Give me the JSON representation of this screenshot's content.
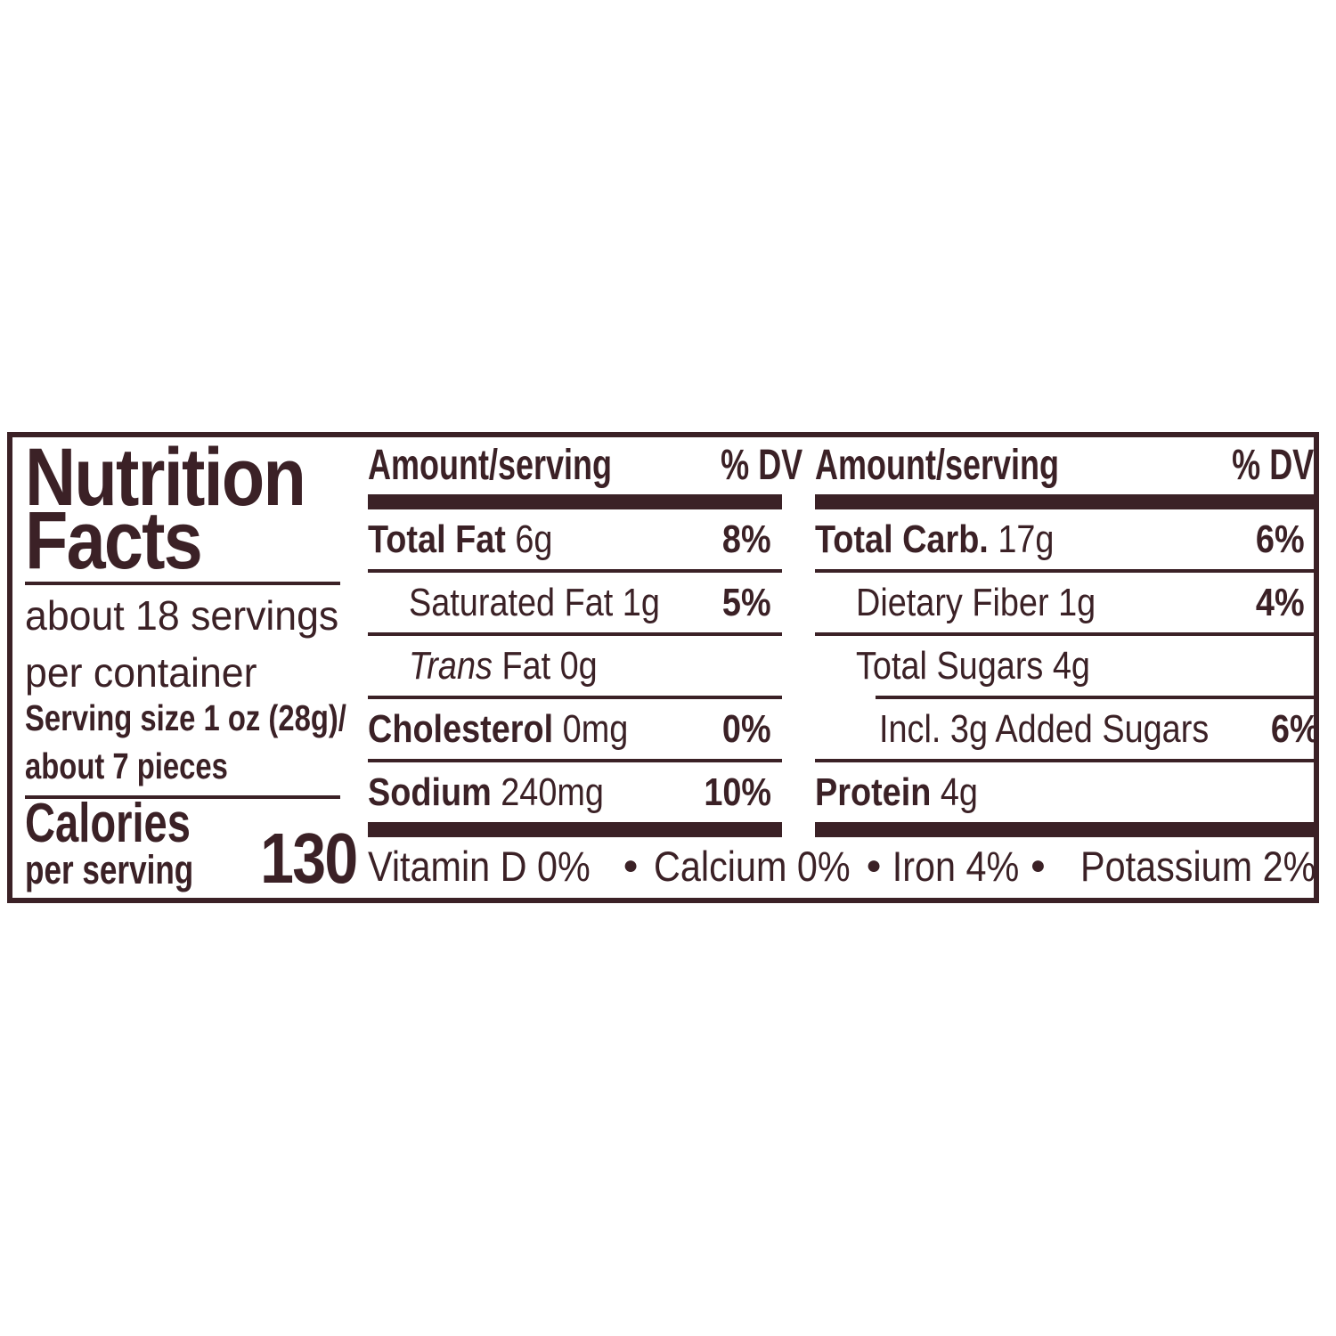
{
  "colors": {
    "ink": "#3B2126",
    "background": "#FFFFFF"
  },
  "label": {
    "title_line1": "Nutrition",
    "title_line2": "Facts",
    "servings_line1": "about 18 servings",
    "servings_line2": "per container",
    "serving_size_line1": "Serving size 1 oz (28g)/",
    "serving_size_line2": "about 7 pieces",
    "calories_line1": "Calories",
    "calories_line2": "per serving",
    "calories_value": "130",
    "columns": [
      {
        "header_amount": "Amount/serving",
        "header_dv": "% DV",
        "rows": [
          {
            "key": "total-fat",
            "indent": 0,
            "segments": [
              {
                "t": "Total Fat",
                "s": "b"
              },
              {
                "t": " 6g",
                "s": "r"
              }
            ],
            "dv": "8%",
            "sep_after": "full"
          },
          {
            "key": "saturated-fat",
            "indent": 1,
            "segments": [
              {
                "t": "Saturated Fat 1g",
                "s": "r"
              }
            ],
            "dv": "5%",
            "sep_after": "full"
          },
          {
            "key": "trans-fat",
            "indent": 1,
            "segments": [
              {
                "t": "Trans",
                "s": "i"
              },
              {
                "t": " Fat 0g",
                "s": "r"
              }
            ],
            "dv": "",
            "sep_after": "full"
          },
          {
            "key": "cholesterol",
            "indent": 0,
            "segments": [
              {
                "t": "Cholesterol",
                "s": "b"
              },
              {
                "t": " 0mg",
                "s": "r"
              }
            ],
            "dv": "0%",
            "sep_after": "full"
          },
          {
            "key": "sodium",
            "indent": 0,
            "segments": [
              {
                "t": "Sodium",
                "s": "b"
              },
              {
                "t": " 240mg",
                "s": "r"
              }
            ],
            "dv": "10%",
            "sep_after": "none"
          }
        ]
      },
      {
        "header_amount": "Amount/serving",
        "header_dv": "% DV",
        "rows": [
          {
            "key": "total-carb",
            "indent": 0,
            "segments": [
              {
                "t": "Total Carb.",
                "s": "b"
              },
              {
                "t": " 17g",
                "s": "r"
              }
            ],
            "dv": "6%",
            "sep_after": "full"
          },
          {
            "key": "dietary-fiber",
            "indent": 1,
            "segments": [
              {
                "t": "Dietary Fiber 1g",
                "s": "r"
              }
            ],
            "dv": "4%",
            "sep_after": "full"
          },
          {
            "key": "total-sugars",
            "indent": 1,
            "segments": [
              {
                "t": "Total Sugars 4g",
                "s": "r"
              }
            ],
            "dv": "",
            "sep_after": "indent"
          },
          {
            "key": "added-sugars",
            "indent": 2,
            "segments": [
              {
                "t": "Incl. 3g Added Sugars",
                "s": "r"
              }
            ],
            "dv": "6%",
            "sep_after": "full"
          },
          {
            "key": "protein",
            "indent": 0,
            "segments": [
              {
                "t": "Protein",
                "s": "b"
              },
              {
                "t": " 4g",
                "s": "r"
              }
            ],
            "dv": "",
            "sep_after": "none"
          }
        ]
      }
    ],
    "footer": {
      "bullet": "●",
      "items": [
        "Vitamin D 0%",
        "Calcium 0%",
        "Iron 4%",
        "Potassium 2%"
      ]
    }
  }
}
